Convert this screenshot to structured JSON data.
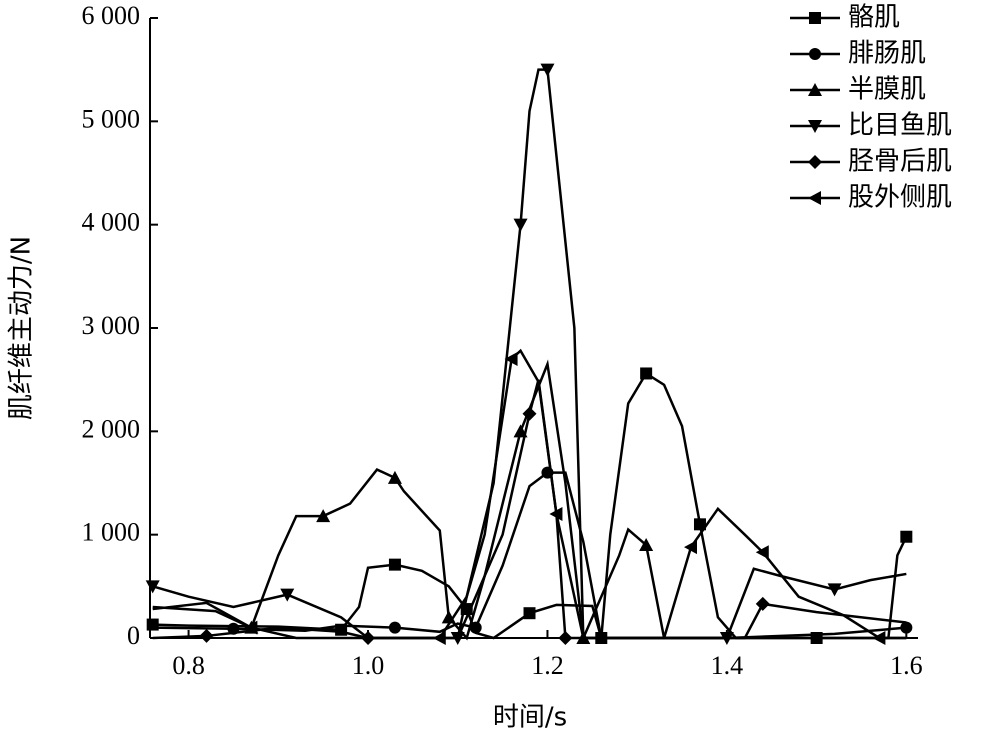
{
  "chart_data": {
    "type": "line",
    "x_label": "时间/s",
    "y_label": "肌纤维主动力/N",
    "xlim": [
      0.757,
      1.613
    ],
    "ylim": [
      0,
      6000
    ],
    "xticks": [
      0.8,
      {
        "value": 1,
        "label": "1.0"
      },
      1.2,
      1.4,
      1.6
    ],
    "yticks": [
      0,
      {
        "value": 1000,
        "label": "1 000"
      },
      {
        "value": 2000,
        "label": "2 000"
      },
      {
        "value": 3000,
        "label": "3 000"
      },
      {
        "value": 4000,
        "label": "4 000"
      },
      {
        "value": 5000,
        "label": "5 000"
      },
      {
        "value": 6000,
        "label": "6 000"
      }
    ],
    "legend": "upper right",
    "series": [
      {
        "name": "骼肌",
        "color": "#000000",
        "marker": "square",
        "x": [
          0.76,
          0.8,
          0.9,
          0.97,
          0.99,
          1.0,
          1.03,
          1.06,
          1.09,
          1.11,
          1.12,
          1.14,
          1.18,
          1.21,
          1.25,
          1.26,
          1.27,
          1.29,
          1.31,
          1.33,
          1.35,
          1.37,
          1.39,
          1.41,
          1.5,
          1.58,
          1.59,
          1.6
        ],
        "values": [
          130,
          120,
          110,
          80,
          300,
          680,
          710,
          650,
          500,
          280,
          50,
          0,
          240,
          320,
          310,
          0,
          1000,
          2270,
          2560,
          2450,
          2050,
          1100,
          200,
          0,
          0,
          0,
          800,
          980
        ]
      },
      {
        "name": "腓肠肌",
        "color": "#000000",
        "marker": "circle",
        "x": [
          0.76,
          0.85,
          0.93,
          0.97,
          1.03,
          1.08,
          1.1,
          1.12,
          1.15,
          1.18,
          1.2,
          1.22,
          1.24,
          1.26,
          1.4,
          1.52,
          1.6
        ],
        "values": [
          100,
          90,
          70,
          120,
          100,
          60,
          140,
          100,
          700,
          1470,
          1600,
          1600,
          930,
          0,
          0,
          40,
          100
        ]
      },
      {
        "name": "半膜肌",
        "color": "#000000",
        "marker": "triangle-up",
        "x": [
          0.76,
          0.82,
          0.87,
          0.9,
          0.92,
          0.95,
          0.98,
          1.01,
          1.03,
          1.04,
          1.08,
          1.09,
          1.11,
          1.13,
          1.17,
          1.2,
          1.22,
          1.24,
          1.28,
          1.29,
          1.31,
          1.33,
          1.6
        ],
        "values": [
          280,
          340,
          100,
          800,
          1180,
          1180,
          1300,
          1630,
          1550,
          1420,
          1040,
          200,
          0,
          600,
          2000,
          2650,
          1500,
          0,
          800,
          1050,
          900,
          0,
          0
        ]
      },
      {
        "name": "比目鱼肌",
        "color": "#000000",
        "marker": "triangle-down",
        "x": [
          0.76,
          0.8,
          0.85,
          0.91,
          0.97,
          1.0,
          1.1,
          1.11,
          1.14,
          1.17,
          1.18,
          1.19,
          1.2,
          1.23,
          1.24,
          1.4,
          1.43,
          1.46,
          1.52,
          1.56,
          1.6
        ],
        "values": [
          500,
          400,
          300,
          420,
          200,
          0,
          0,
          400,
          1500,
          4000,
          5100,
          5500,
          5500,
          3000,
          0,
          0,
          670,
          600,
          470,
          560,
          620
        ]
      },
      {
        "name": "胫骨后肌",
        "color": "#000000",
        "marker": "diamond",
        "x": [
          0.76,
          0.82,
          0.9,
          0.97,
          1.0,
          1.1,
          1.15,
          1.18,
          1.19,
          1.21,
          1.22,
          1.3,
          1.42,
          1.44,
          1.5,
          1.6
        ],
        "values": [
          0,
          20,
          100,
          60,
          0,
          0,
          1000,
          2170,
          2500,
          1200,
          0,
          0,
          0,
          330,
          250,
          150
        ]
      },
      {
        "name": "股外侧肌",
        "color": "#000000",
        "marker": "triangle-left",
        "x": [
          0.76,
          0.83,
          0.87,
          0.92,
          1.0,
          1.08,
          1.11,
          1.13,
          1.16,
          1.17,
          1.19,
          1.21,
          1.24,
          1.33,
          1.36,
          1.39,
          1.42,
          1.44,
          1.48,
          1.53,
          1.57,
          1.6
        ],
        "values": [
          300,
          260,
          100,
          0,
          0,
          0,
          400,
          1000,
          2700,
          2780,
          2480,
          1200,
          0,
          0,
          880,
          1250,
          1000,
          830,
          400,
          220,
          0,
          0
        ]
      }
    ]
  }
}
